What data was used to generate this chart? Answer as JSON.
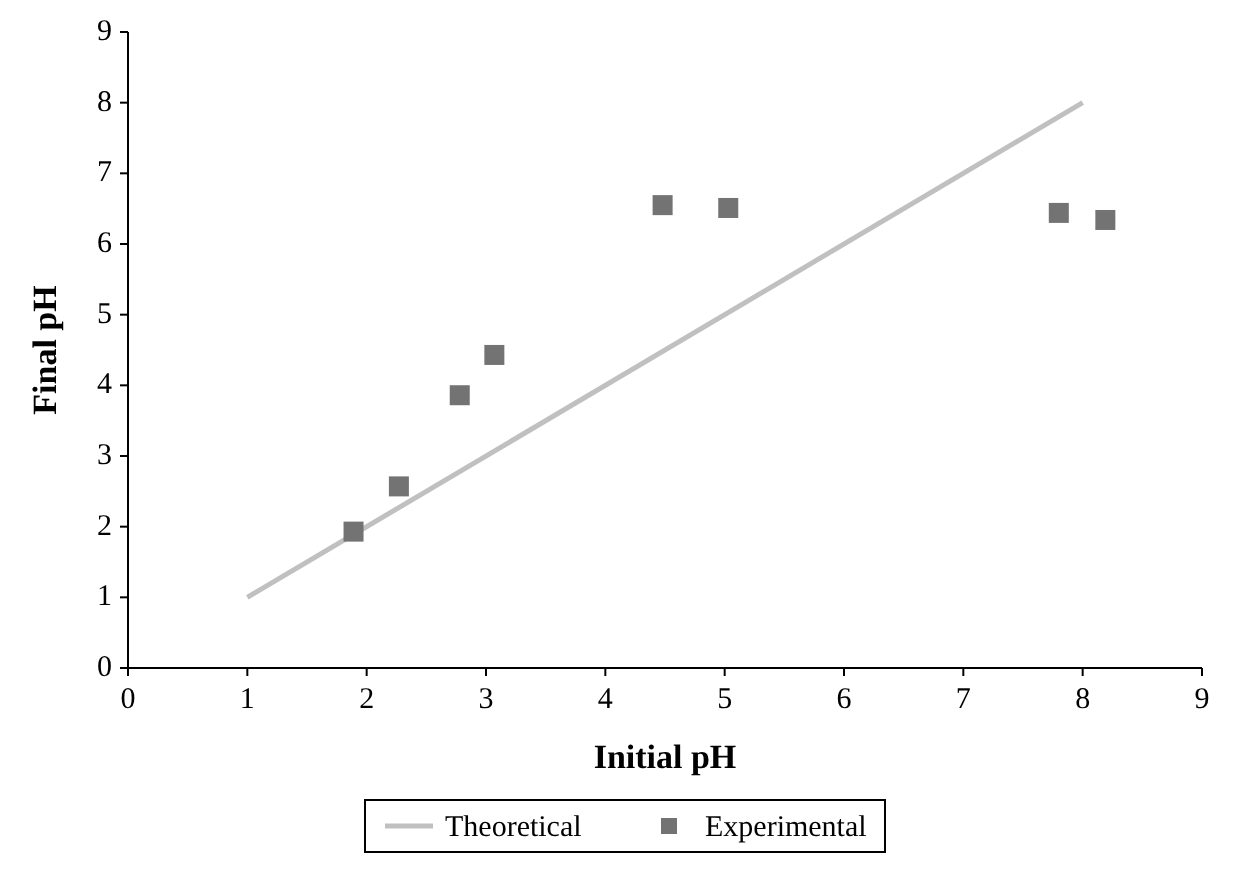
{
  "chart_data": {
    "type": "scatter",
    "xlabel": "Initial pH",
    "ylabel": "Final pH",
    "xlim": [
      0,
      9
    ],
    "ylim": [
      0,
      9
    ],
    "xticks": [
      0,
      1,
      2,
      3,
      4,
      5,
      6,
      7,
      8,
      9
    ],
    "yticks": [
      0,
      1,
      2,
      3,
      4,
      5,
      6,
      7,
      8,
      9
    ],
    "grid": false,
    "legend": "bottom",
    "series": [
      {
        "name": "Theoretical",
        "type": "line",
        "color": "#c0c0c0",
        "x": [
          1,
          8
        ],
        "values": [
          1,
          8
        ],
        "marker": "none",
        "line_style": "solid"
      },
      {
        "name": "Experimental",
        "type": "scatter",
        "color": "#737373",
        "x": [
          1.89,
          2.27,
          2.78,
          3.07,
          4.48,
          5.03,
          7.8,
          8.19
        ],
        "values": [
          1.93,
          2.57,
          3.86,
          4.43,
          6.55,
          6.51,
          6.44,
          6.34
        ],
        "marker": "square"
      }
    ]
  }
}
